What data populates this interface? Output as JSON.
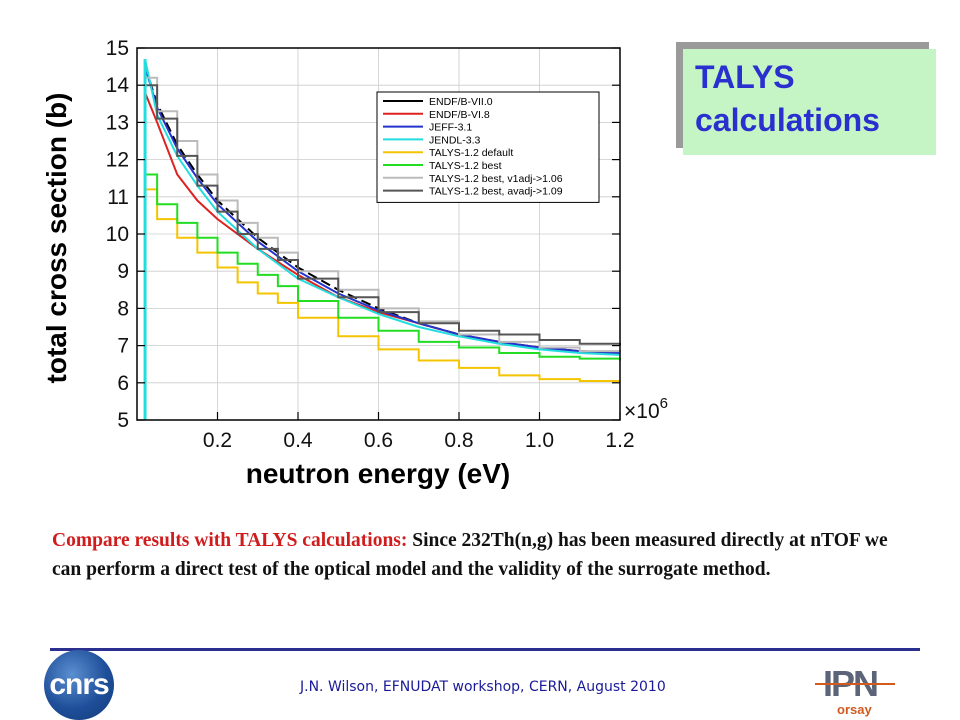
{
  "slide": {
    "box_title": "TALYS\ncalculations",
    "caption_lead": "Compare results with TALYS calculations: ",
    "caption_body": "Since 232Th(n,g) has been measured directly at nTOF we can perform a direct test of the  optical  model and the validity of the surrogate method.",
    "footer": "J.N. Wilson, EFNUDAT workshop, CERN, August 2010",
    "logo_left_text": "cnrs",
    "logo_right_text": "IPN",
    "logo_right_sub": "orsay"
  },
  "chart_data": {
    "type": "line",
    "title": "",
    "xlabel": "neutron energy (eV)",
    "ylabel": "total cross section (b)",
    "x_multiplier_label": "×10",
    "x_multiplier_exp": "6",
    "xlim": [
      0,
      1.2
    ],
    "ylim": [
      5,
      15
    ],
    "x_ticks": [
      0.2,
      0.4,
      0.6,
      0.8,
      1.0,
      1.2
    ],
    "x_tick_labels": [
      "0.2",
      "0.4",
      "0.6",
      "0.8",
      "1.0",
      "1.2"
    ],
    "y_ticks": [
      5,
      6,
      7,
      8,
      9,
      10,
      11,
      12,
      13,
      14,
      15
    ],
    "y_tick_labels": [
      "5",
      "6",
      "7",
      "8",
      "9",
      "10",
      "11",
      "12",
      "13",
      "14",
      "15"
    ],
    "legend_position": "top-right",
    "series": [
      {
        "name": "ENDF/B-VII.0",
        "color": "#000000",
        "style": "line",
        "x": [
          0.02,
          0.05,
          0.1,
          0.15,
          0.2,
          0.3,
          0.4,
          0.5,
          0.6,
          0.7,
          0.8,
          0.9,
          1.0,
          1.1,
          1.2
        ],
        "y": [
          14.5,
          13.5,
          12.4,
          11.6,
          10.9,
          9.9,
          9.1,
          8.5,
          8.0,
          7.6,
          7.3,
          7.1,
          6.95,
          6.85,
          6.8
        ]
      },
      {
        "name": "ENDF/B-VI.8",
        "color": "#dd2222",
        "style": "line",
        "x": [
          0.02,
          0.05,
          0.1,
          0.15,
          0.2,
          0.3,
          0.4,
          0.5,
          0.6,
          0.7,
          0.8,
          0.9,
          1.0,
          1.1,
          1.2
        ],
        "y": [
          13.8,
          13.0,
          11.6,
          10.9,
          10.4,
          9.6,
          8.9,
          8.3,
          7.9,
          7.6,
          7.3,
          7.1,
          6.95,
          6.85,
          6.8
        ]
      },
      {
        "name": "JEFF-3.1",
        "color": "#2233cc",
        "style": "line",
        "x": [
          0.02,
          0.05,
          0.1,
          0.15,
          0.2,
          0.3,
          0.4,
          0.5,
          0.6,
          0.7,
          0.8,
          0.9,
          1.0,
          1.1,
          1.2
        ],
        "y": [
          14.5,
          13.4,
          12.3,
          11.5,
          10.8,
          9.8,
          9.0,
          8.4,
          7.95,
          7.6,
          7.3,
          7.1,
          6.95,
          6.85,
          6.8
        ]
      },
      {
        "name": "JENDL-3.3",
        "color": "#22dddd",
        "style": "line",
        "x": [
          0.02,
          0.05,
          0.1,
          0.15,
          0.2,
          0.3,
          0.4,
          0.5,
          0.6,
          0.7,
          0.8,
          0.9,
          1.0,
          1.1,
          1.2
        ],
        "y": [
          14.7,
          13.2,
          12.1,
          11.3,
          10.6,
          9.6,
          8.8,
          8.3,
          7.85,
          7.5,
          7.25,
          7.05,
          6.9,
          6.8,
          6.75
        ]
      },
      {
        "name": "TALYS-1.2 default",
        "color": "#f5c400",
        "style": "step",
        "x": [
          0.02,
          0.05,
          0.1,
          0.15,
          0.2,
          0.25,
          0.3,
          0.35,
          0.4,
          0.5,
          0.6,
          0.7,
          0.8,
          0.9,
          1.0,
          1.1,
          1.2
        ],
        "y": [
          11.2,
          10.4,
          9.9,
          9.5,
          9.1,
          8.7,
          8.4,
          8.15,
          7.75,
          7.25,
          6.9,
          6.6,
          6.4,
          6.2,
          6.1,
          6.05,
          6.05
        ]
      },
      {
        "name": "TALYS-1.2 best",
        "color": "#22dd22",
        "style": "step",
        "x": [
          0.02,
          0.05,
          0.1,
          0.15,
          0.2,
          0.25,
          0.3,
          0.35,
          0.4,
          0.5,
          0.6,
          0.7,
          0.8,
          0.9,
          1.0,
          1.1,
          1.2
        ],
        "y": [
          11.6,
          10.8,
          10.3,
          9.9,
          9.5,
          9.2,
          8.9,
          8.6,
          8.2,
          7.75,
          7.4,
          7.1,
          6.95,
          6.8,
          6.7,
          6.65,
          6.6
        ]
      },
      {
        "name": "TALYS-1.2 best, v1adj->1.06",
        "color": "#bbbbbb",
        "style": "step",
        "x": [
          0.02,
          0.05,
          0.1,
          0.15,
          0.2,
          0.25,
          0.3,
          0.35,
          0.4,
          0.5,
          0.6,
          0.7,
          0.8,
          0.9,
          1.0,
          1.1,
          1.2
        ],
        "y": [
          14.2,
          13.3,
          12.5,
          11.6,
          10.9,
          10.3,
          9.9,
          9.5,
          9.0,
          8.5,
          8.0,
          7.65,
          7.3,
          7.1,
          6.95,
          6.85,
          6.8
        ]
      },
      {
        "name": "TALYS-1.2 best, avadj->1.09",
        "color": "#555555",
        "style": "step",
        "x": [
          0.02,
          0.05,
          0.1,
          0.15,
          0.2,
          0.25,
          0.3,
          0.35,
          0.4,
          0.5,
          0.6,
          0.7,
          0.8,
          0.9,
          1.0,
          1.1,
          1.2
        ],
        "y": [
          14.0,
          13.1,
          12.1,
          11.3,
          10.6,
          10.0,
          9.6,
          9.3,
          8.8,
          8.3,
          7.9,
          7.6,
          7.4,
          7.3,
          7.15,
          7.05,
          7.0
        ]
      }
    ]
  }
}
